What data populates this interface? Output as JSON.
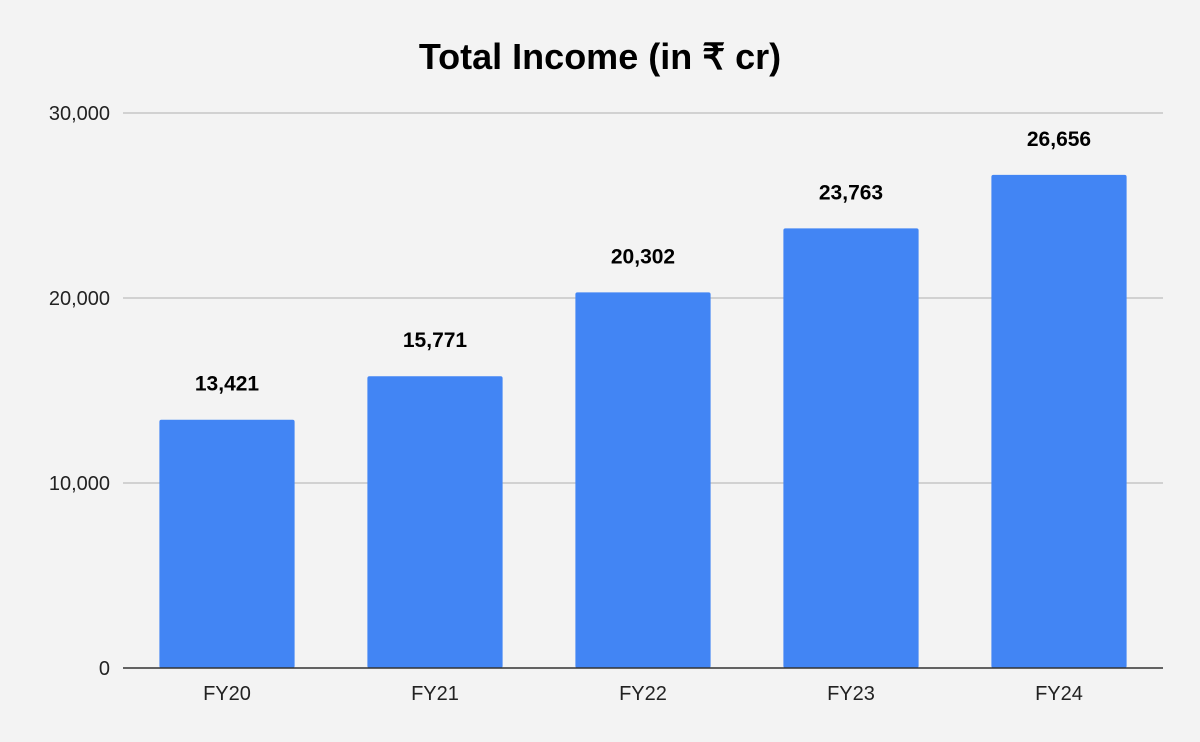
{
  "chart_data": {
    "type": "bar",
    "title": "Total Income (in ₹ cr)",
    "xlabel": "",
    "ylabel": "",
    "categories": [
      "FY20",
      "FY21",
      "FY22",
      "FY23",
      "FY24"
    ],
    "values": [
      13421,
      15771,
      20302,
      23763,
      26656
    ],
    "value_labels": [
      "13,421",
      "15,771",
      "20,302",
      "23,763",
      "26,656"
    ],
    "ylim": [
      0,
      30000
    ],
    "y_ticks": [
      0,
      10000,
      20000,
      30000
    ],
    "y_tick_labels": [
      "0",
      "10,000",
      "20,000",
      "30,000"
    ],
    "grid": true,
    "legend": "none",
    "colors": {
      "bar": "#4285f4",
      "background": "#f3f3f3",
      "gridline": "#c6c6c6"
    }
  }
}
